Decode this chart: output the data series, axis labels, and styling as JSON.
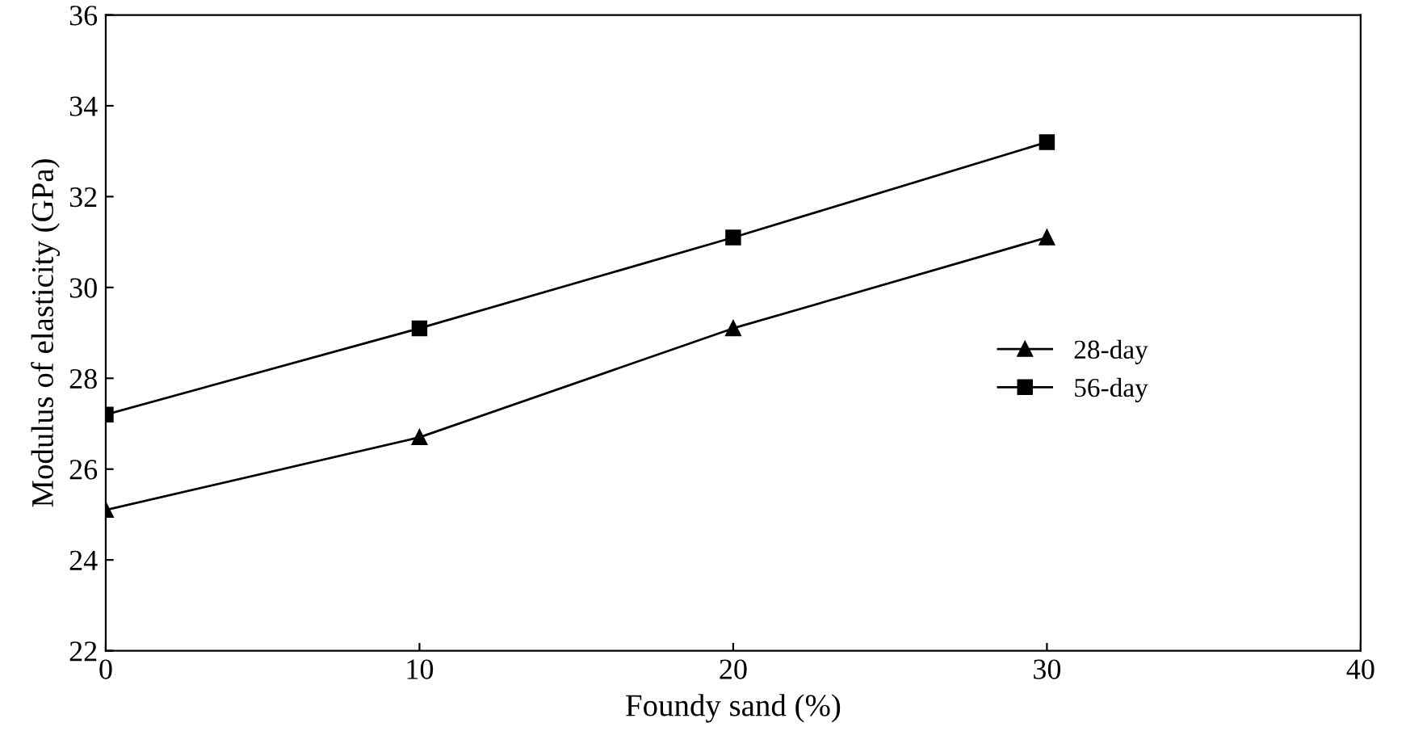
{
  "chart_data": {
    "type": "line",
    "xlabel": "Foundy sand (%)",
    "ylabel": "Modulus of elasticity (GPa)",
    "x": [
      0,
      10,
      20,
      30
    ],
    "series": [
      {
        "name": "28-day",
        "color": "#000000",
        "marker": "triangle",
        "values": [
          25.1,
          26.7,
          29.1,
          31.1
        ]
      },
      {
        "name": "56-day",
        "color": "#000000",
        "marker": "square",
        "values": [
          27.2,
          29.1,
          31.1,
          33.2
        ]
      }
    ],
    "xlim": [
      0,
      40
    ],
    "xticks": [
      0,
      10,
      20,
      30,
      40
    ],
    "ylim": [
      22,
      36
    ],
    "yticks": [
      22,
      24,
      26,
      28,
      30,
      32,
      34,
      36
    ],
    "grid": false,
    "legend": "center right",
    "line_style": "solid"
  }
}
